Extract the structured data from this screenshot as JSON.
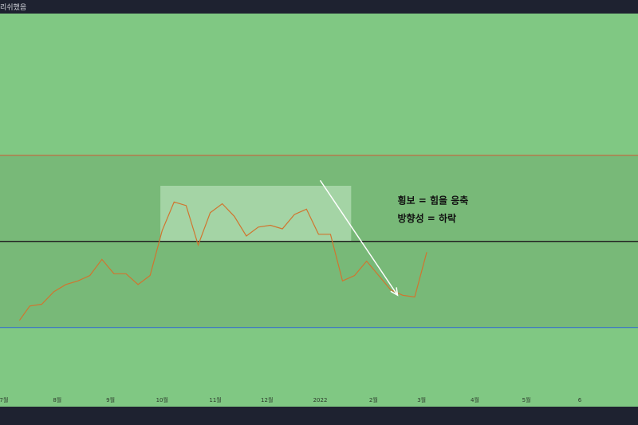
{
  "window": {
    "title": "리쉬했음"
  },
  "colors": {
    "background": "#80c883",
    "band": "#78b978",
    "highlight": "#b3ddb4",
    "price_line": "#d0752f",
    "upper_line": "#d05a35",
    "mid_line": "#222222",
    "lower_line": "#2f66d6",
    "arrow": "#ffffff"
  },
  "chart_data": {
    "type": "line",
    "title": "",
    "xlabel": "",
    "ylabel": "",
    "x_tick_labels": [
      "7월",
      "8월",
      "9월",
      "10월",
      "11월",
      "12월",
      "2022",
      "2월",
      "3월",
      "4월",
      "5월",
      "6"
    ],
    "x_ticks": [
      "2021-07",
      "2021-08",
      "2021-09",
      "2021-10",
      "2021-11",
      "2021-12",
      "2022-01",
      "2022-02",
      "2022-03",
      "2022-04",
      "2022-05",
      "2022-06"
    ],
    "ylim": [
      0,
      100
    ],
    "series": [
      {
        "x": [
          "2021-07-10",
          "2021-07-16",
          "2021-07-23",
          "2021-07-30",
          "2021-08-06",
          "2021-08-13",
          "2021-08-20",
          "2021-08-27",
          "2021-09-03",
          "2021-09-10",
          "2021-09-17",
          "2021-09-24",
          "2021-10-01",
          "2021-10-08",
          "2021-10-15",
          "2021-10-22",
          "2021-10-29",
          "2021-11-05",
          "2021-11-12",
          "2021-11-19",
          "2021-11-26",
          "2021-12-03",
          "2021-12-10",
          "2021-12-17",
          "2021-12-24",
          "2021-12-31",
          "2022-01-07",
          "2022-01-14",
          "2022-01-21",
          "2022-01-28",
          "2022-02-04",
          "2022-02-11",
          "2022-02-18",
          "2022-02-25",
          "2022-03-04"
        ],
        "y": [
          28.5,
          32.5,
          33,
          36.5,
          38.5,
          39.5,
          41,
          45.5,
          41.5,
          41.5,
          38.5,
          41,
          53.5,
          61.5,
          60.5,
          49.5,
          58.5,
          61,
          57.5,
          52,
          54.5,
          55,
          54,
          58,
          59.5,
          52.5,
          52.5,
          39.5,
          41,
          45,
          41,
          37,
          35.5,
          35,
          47.5
        ]
      }
    ],
    "hlines": [
      {
        "y": 74.5
      },
      {
        "y": 50.5
      },
      {
        "y": 26.5
      }
    ],
    "highlight_x": [
      "2021-09-30",
      "2022-01-19"
    ],
    "highlight_y": [
      50.5,
      66
    ],
    "arrow": {
      "from": [
        "2022-01-01",
        67.5
      ],
      "to": [
        "2022-02-15",
        35.5
      ]
    },
    "annotations": [
      {
        "text": "횡보 = 힘을 응축",
        "x": "2022-02-15",
        "y": 61
      },
      {
        "text": "방향성 = 하락",
        "x": "2022-02-15",
        "y": 56
      }
    ]
  }
}
